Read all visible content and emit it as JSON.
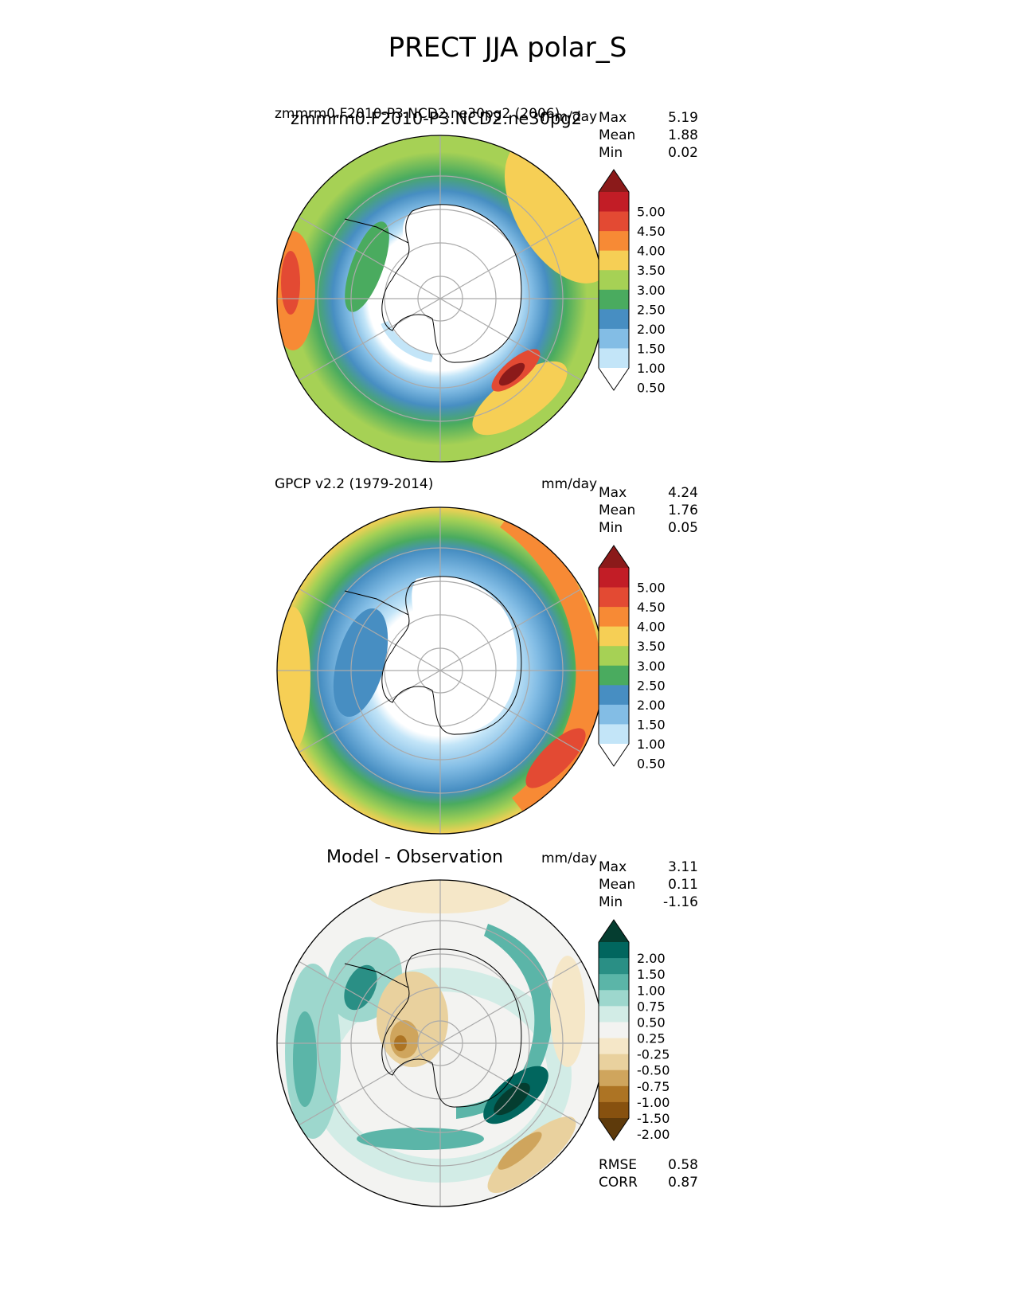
{
  "title": "PRECT JJA polar_S",
  "panels": [
    {
      "left_title": "zmmrm0.F2010-P3.NCD2.ne30pg2",
      "left_title_overlap": "zmmrm0.F2010-P3.NCD2.ne30pg2 (2006)",
      "right_title": "mm/day",
      "stats": [
        {
          "label": "Max",
          "value": "5.19"
        },
        {
          "label": "Mean",
          "value": "1.88"
        },
        {
          "label": "Min",
          "value": "0.02"
        }
      ],
      "colorbar": {
        "levels": [
          "5.00",
          "4.50",
          "4.00",
          "3.50",
          "3.00",
          "2.50",
          "2.00",
          "1.50",
          "1.00",
          "0.50"
        ],
        "colors": [
          "#8b1a1a",
          "#c21d26",
          "#e34a33",
          "#f78a35",
          "#f6cf55",
          "#a6d155",
          "#4aab5f",
          "#478ec2",
          "#83bde5",
          "#c3e5f8",
          "#ffffff"
        ]
      }
    },
    {
      "left_title": "GPCP v2.2 (1979-2014)",
      "right_title": "mm/day",
      "stats": [
        {
          "label": "Max",
          "value": "4.24"
        },
        {
          "label": "Mean",
          "value": "1.76"
        },
        {
          "label": "Min",
          "value": "0.05"
        }
      ],
      "colorbar": {
        "levels": [
          "5.00",
          "4.50",
          "4.00",
          "3.50",
          "3.00",
          "2.50",
          "2.00",
          "1.50",
          "1.00",
          "0.50"
        ],
        "colors": [
          "#8b1a1a",
          "#c21d26",
          "#e34a33",
          "#f78a35",
          "#f6cf55",
          "#a6d155",
          "#4aab5f",
          "#478ec2",
          "#83bde5",
          "#c3e5f8",
          "#ffffff"
        ]
      }
    },
    {
      "center_title": "Model - Observation",
      "right_title": "mm/day",
      "stats": [
        {
          "label": "Max",
          "value": "3.11"
        },
        {
          "label": "Mean",
          "value": "0.11"
        },
        {
          "label": "Min",
          "value": "-1.16"
        }
      ],
      "metrics": [
        {
          "label": "RMSE",
          "value": "0.58"
        },
        {
          "label": "CORR",
          "value": "0.87"
        }
      ],
      "colorbar": {
        "levels": [
          "2.00",
          "1.50",
          "1.00",
          "0.75",
          "0.50",
          "0.25",
          "-0.25",
          "-0.50",
          "-0.75",
          "-1.00",
          "-1.50",
          "-2.00"
        ],
        "colors": [
          "#053d30",
          "#01665e",
          "#2a8f85",
          "#5bb5a8",
          "#9dd7cd",
          "#d2ece6",
          "#f3f3f1",
          "#f5e7c8",
          "#e9d19e",
          "#cfa55d",
          "#ad7424",
          "#87510f",
          "#5e3a0b"
        ]
      }
    }
  ]
}
